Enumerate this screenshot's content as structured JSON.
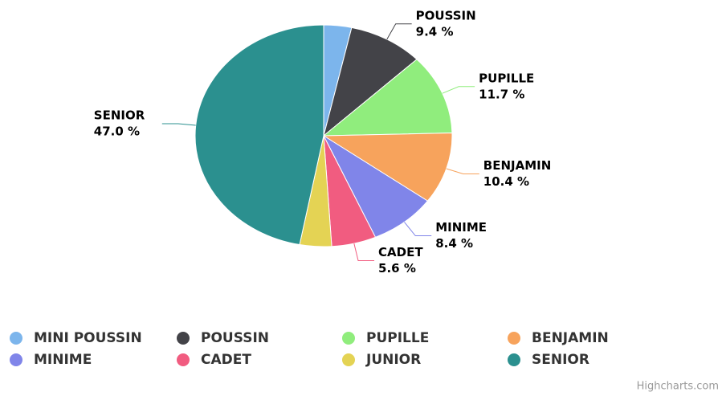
{
  "chart_data": {
    "type": "pie",
    "categories": [
      "MINI POUSSIN",
      "POUSSIN",
      "PUPILLE",
      "BENJAMIN",
      "MINIME",
      "CADET",
      "JUNIOR",
      "SENIOR"
    ],
    "values": [
      3.5,
      9.4,
      11.7,
      10.4,
      8.4,
      5.6,
      4.0,
      47.0
    ],
    "value_labels": [
      null,
      "9.4 %",
      "11.7 %",
      "10.4 %",
      "8.4 %",
      "5.6 %",
      null,
      "47.0 %"
    ],
    "colors": [
      "#7cb5ec",
      "#434348",
      "#90ed7d",
      "#f7a35c",
      "#8085e9",
      "#f15c80",
      "#e4d354",
      "#2b908f"
    ],
    "legend": "bottom",
    "credits": "Highcharts.com"
  }
}
